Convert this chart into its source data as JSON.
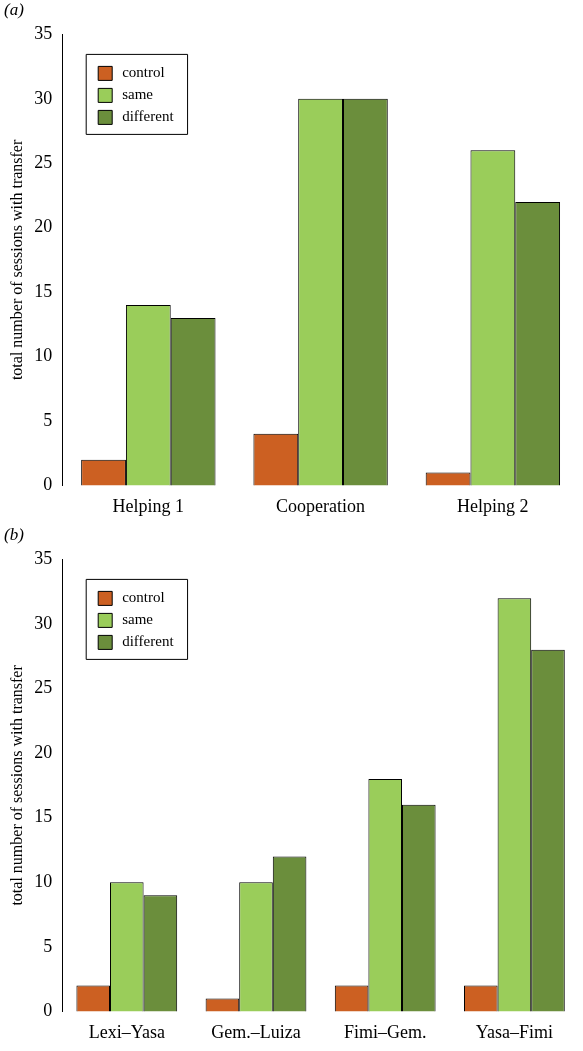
{
  "chart_data": [
    {
      "type": "bar",
      "title": "(a)",
      "ylabel": "total number of sessions with transfer",
      "categories": [
        "Helping 1",
        "Cooperation",
        "Helping 2"
      ],
      "series": [
        {
          "name": "control",
          "color": "#cc6022",
          "values": [
            2,
            4,
            1
          ]
        },
        {
          "name": "same",
          "color": "#9acd5a",
          "values": [
            14,
            30,
            26
          ]
        },
        {
          "name": "different",
          "color": "#6b8e3c",
          "values": [
            13,
            30,
            22
          ]
        }
      ],
      "ylim": [
        0,
        35
      ],
      "yticks": [
        0,
        5,
        10,
        15,
        20,
        25,
        30,
        35
      ],
      "grid": false,
      "legend": "top left"
    },
    {
      "type": "bar",
      "title": "(b)",
      "ylabel": "total number of sessions with transfer",
      "categories": [
        "Lexi–Yasa",
        "Gem.–Luiza",
        "Fimi–Gem.",
        "Yasa–Fimi"
      ],
      "series": [
        {
          "name": "control",
          "color": "#cc6022",
          "values": [
            2,
            1,
            2,
            2
          ]
        },
        {
          "name": "same",
          "color": "#9acd5a",
          "values": [
            10,
            10,
            18,
            32
          ]
        },
        {
          "name": "different",
          "color": "#6b8e3c",
          "values": [
            9,
            12,
            16,
            28
          ]
        }
      ],
      "ylim": [
        0,
        35
      ],
      "yticks": [
        0,
        5,
        10,
        15,
        20,
        25,
        30,
        35
      ],
      "grid": false,
      "legend": "top left"
    }
  ]
}
